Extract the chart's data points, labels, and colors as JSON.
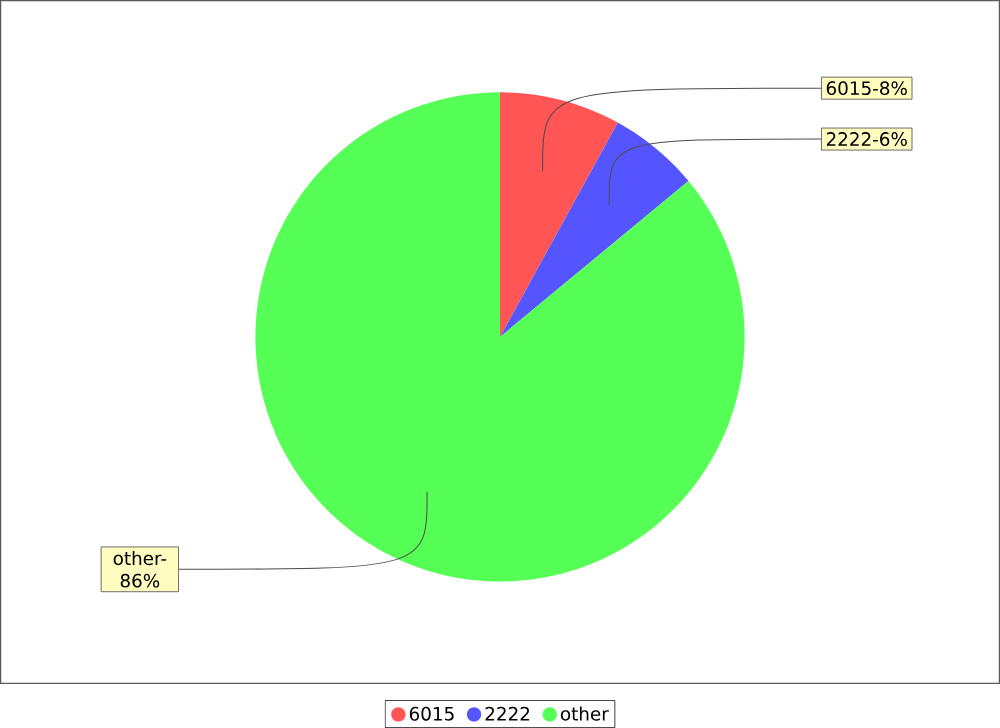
{
  "chart_data": {
    "type": "pie",
    "categories": [
      "6015",
      "2222",
      "other"
    ],
    "values": [
      8,
      6,
      86
    ],
    "colors": [
      "#ff5555",
      "#5555ff",
      "#55ff55"
    ],
    "annotations": [
      "6015-8%",
      "2222-6%",
      "other-86%"
    ],
    "legend": "bottom"
  }
}
